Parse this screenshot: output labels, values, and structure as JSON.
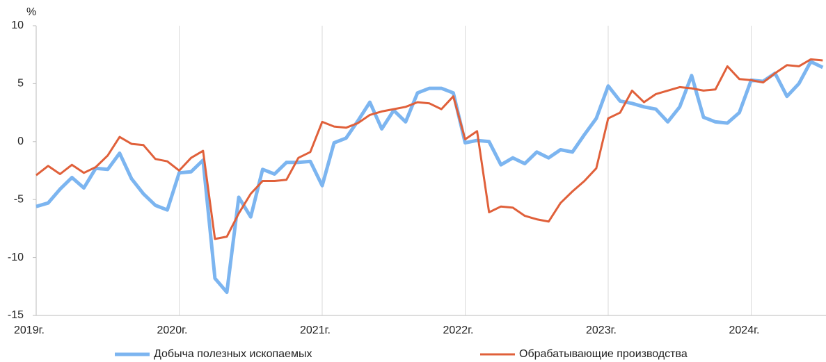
{
  "chart_data": {
    "type": "line",
    "y_label": "%",
    "categories": [
      "2019г.",
      null,
      null,
      null,
      null,
      null,
      null,
      null,
      null,
      null,
      null,
      null,
      "2020г.",
      null,
      null,
      null,
      null,
      null,
      null,
      null,
      null,
      null,
      null,
      null,
      "2021г.",
      null,
      null,
      null,
      null,
      null,
      null,
      null,
      null,
      null,
      null,
      null,
      "2022г.",
      null,
      null,
      null,
      null,
      null,
      null,
      null,
      null,
      null,
      null,
      null,
      "2023г.",
      null,
      null,
      null,
      null,
      null,
      null,
      null,
      null,
      null,
      null,
      null,
      "2024г.",
      null,
      null,
      null,
      null,
      null,
      null
    ],
    "series": [
      {
        "name": "Добыча полезных ископаемых",
        "color": "#7cb5f0",
        "values": [
          -5.6,
          -5.3,
          -4.1,
          -3.1,
          -4.0,
          -2.3,
          -2.4,
          -1.0,
          -3.2,
          -4.5,
          -5.5,
          -5.9,
          -2.7,
          -2.6,
          -1.6,
          -11.8,
          -13.0,
          -4.8,
          -6.5,
          -2.4,
          -2.8,
          -1.8,
          -1.8,
          -1.7,
          -3.8,
          -0.1,
          0.3,
          1.8,
          3.4,
          1.1,
          2.7,
          1.7,
          4.2,
          4.6,
          4.6,
          4.2,
          -0.1,
          0.1,
          0.0,
          -2.0,
          -1.4,
          -1.9,
          -0.9,
          -1.4,
          -0.7,
          -0.9,
          0.6,
          2.0,
          4.8,
          3.5,
          3.3,
          3.0,
          2.8,
          1.7,
          3.0,
          5.7,
          2.1,
          1.7,
          1.6,
          2.5,
          5.3,
          5.2,
          5.9,
          3.9,
          5.0,
          6.9,
          6.4
        ]
      },
      {
        "name": "Обрабатывающие производства",
        "color": "#e0603a",
        "values": [
          -2.9,
          -2.1,
          -2.8,
          -2.0,
          -2.7,
          -2.2,
          -1.2,
          0.4,
          -0.2,
          -0.3,
          -1.5,
          -1.7,
          -2.5,
          -1.4,
          -0.8,
          -8.4,
          -8.2,
          -6.2,
          -4.5,
          -3.4,
          -3.4,
          -3.3,
          -1.4,
          -0.9,
          1.7,
          1.3,
          1.2,
          1.6,
          2.3,
          2.6,
          2.8,
          3.0,
          3.4,
          3.3,
          2.8,
          3.9,
          0.2,
          0.9,
          -6.1,
          -5.6,
          -5.7,
          -6.4,
          -6.7,
          -6.9,
          -5.3,
          -4.3,
          -3.4,
          -2.3,
          2.0,
          2.5,
          4.4,
          3.4,
          4.1,
          4.4,
          4.7,
          4.6,
          4.4,
          4.5,
          6.5,
          5.4,
          5.3,
          5.1,
          5.9,
          6.6,
          6.5,
          7.1,
          7.0
        ]
      }
    ],
    "ylim": [
      -15,
      10
    ],
    "yticks": [
      -15,
      -10,
      -5,
      0,
      5,
      10
    ],
    "grid": "x",
    "legend": "bottom"
  }
}
